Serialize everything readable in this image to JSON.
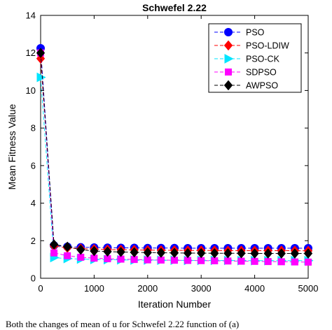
{
  "chart_data": {
    "type": "line",
    "title": "Schwefel 2.22",
    "xlabel": "Iteration Number",
    "ylabel": "Mean Fitness Value",
    "xlim": [
      0,
      5000
    ],
    "ylim": [
      0,
      14
    ],
    "xticks": [
      0,
      1000,
      2000,
      3000,
      4000,
      5000
    ],
    "yticks": [
      0,
      2,
      4,
      6,
      8,
      10,
      12,
      14
    ],
    "grid": false,
    "legend_position": "top-right",
    "x": [
      0,
      250,
      500,
      750,
      1000,
      1250,
      1500,
      1750,
      2000,
      2250,
      2500,
      2750,
      3000,
      3250,
      3500,
      3750,
      4000,
      4250,
      4500,
      4750,
      5000
    ],
    "series": [
      {
        "name": "PSO",
        "color": "#0000ff",
        "marker": "circle",
        "values": [
          12.25,
          1.75,
          1.68,
          1.65,
          1.64,
          1.63,
          1.62,
          1.62,
          1.61,
          1.61,
          1.61,
          1.6,
          1.6,
          1.6,
          1.6,
          1.6,
          1.6,
          1.6,
          1.6,
          1.6,
          1.6
        ]
      },
      {
        "name": "PSO-LDIW",
        "color": "#ff0000",
        "marker": "diamond",
        "values": [
          11.7,
          1.72,
          1.62,
          1.58,
          1.55,
          1.53,
          1.52,
          1.51,
          1.5,
          1.49,
          1.49,
          1.48,
          1.48,
          1.48,
          1.47,
          1.47,
          1.47,
          1.47,
          1.47,
          1.47,
          1.46
        ]
      },
      {
        "name": "PSO-CK",
        "color": "#00e5ff",
        "marker": "triangle-right",
        "values": [
          10.7,
          1.1,
          1.05,
          1.02,
          1.0,
          0.99,
          0.98,
          0.97,
          0.97,
          0.96,
          0.96,
          0.95,
          0.95,
          0.95,
          0.95,
          0.94,
          0.94,
          0.94,
          0.94,
          0.94,
          0.94
        ]
      },
      {
        "name": "SDPSO",
        "color": "#ff00ff",
        "marker": "square",
        "values": [
          12.0,
          1.35,
          1.2,
          1.12,
          1.07,
          1.04,
          1.02,
          1.0,
          0.98,
          0.97,
          0.96,
          0.95,
          0.94,
          0.93,
          0.92,
          0.91,
          0.9,
          0.89,
          0.88,
          0.87,
          0.86
        ]
      },
      {
        "name": "AWPSO",
        "color": "#000000",
        "marker": "diamond",
        "values": [
          12.0,
          1.8,
          1.68,
          1.52,
          1.45,
          1.42,
          1.4,
          1.38,
          1.37,
          1.36,
          1.35,
          1.34,
          1.34,
          1.33,
          1.33,
          1.33,
          1.32,
          1.32,
          1.32,
          1.32,
          1.32
        ]
      }
    ]
  },
  "caption": "Both the changes of mean of u for Schwefel 2.22 function of (a)"
}
